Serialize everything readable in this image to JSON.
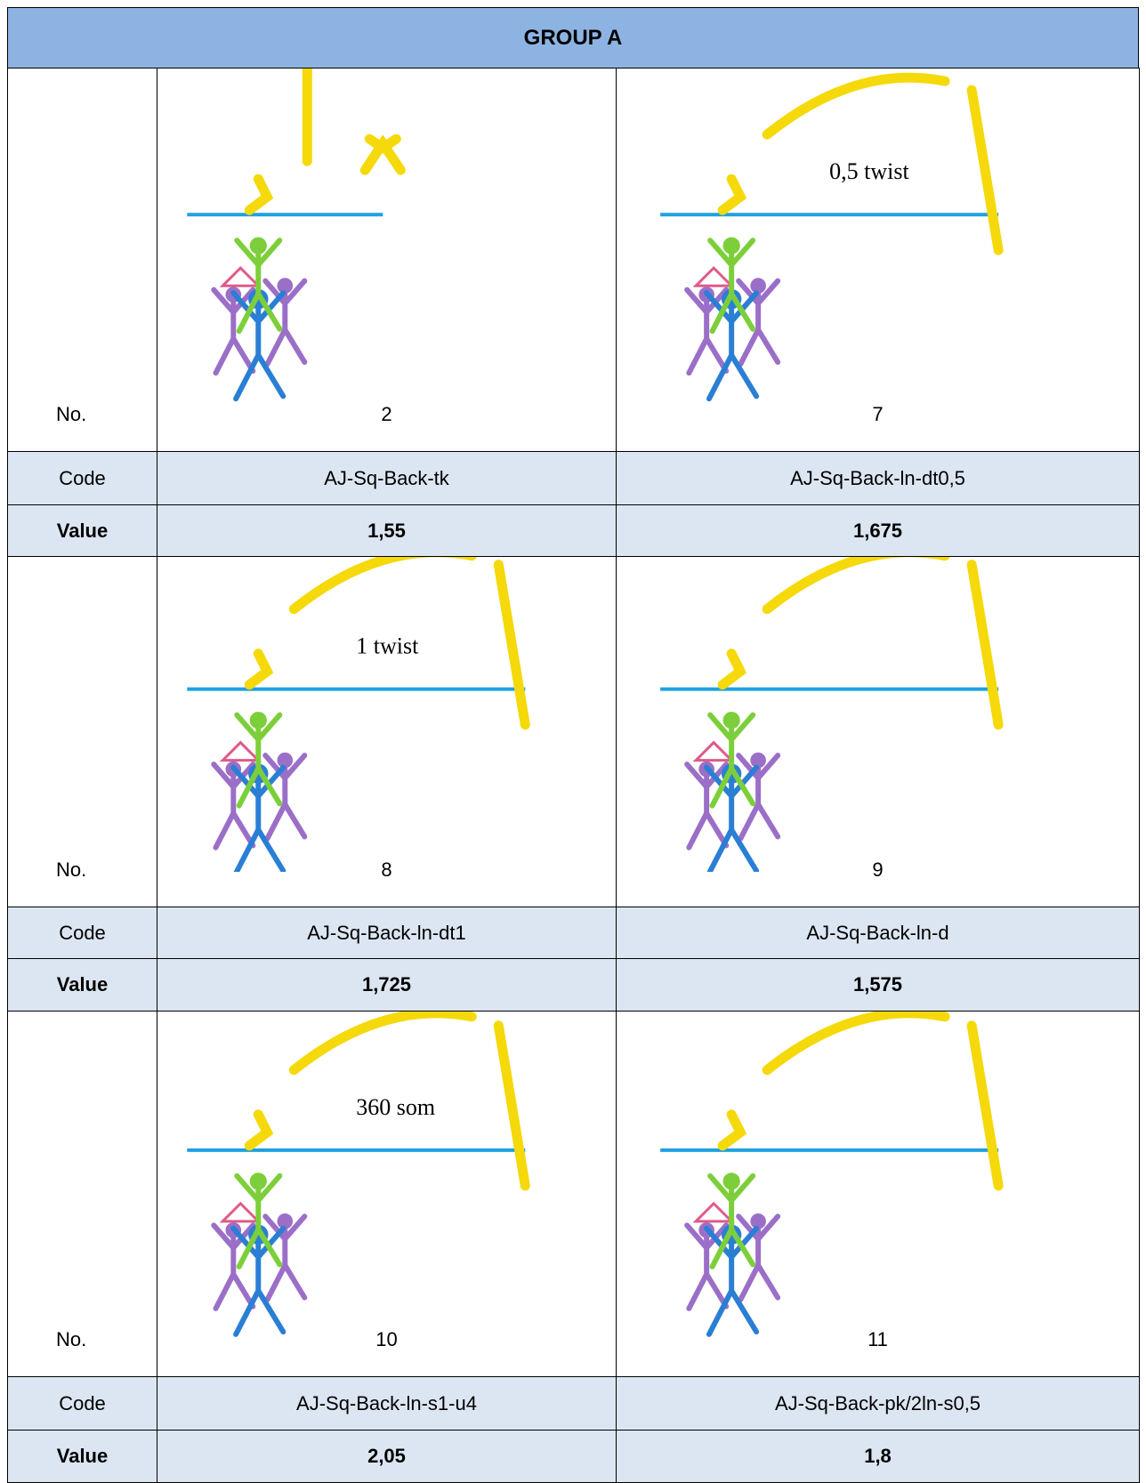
{
  "header": {
    "title": "GROUP A"
  },
  "table": {
    "blocks": [
      {
        "no_label": "No.",
        "code_label": "Code",
        "value_label": "Value",
        "items": [
          {
            "no": "2",
            "code": "AJ-Sq-Back-tk",
            "value": "1,55"
          },
          {
            "no": "7",
            "code": "AJ-Sq-Back-ln-dt0,5",
            "value": "1,675",
            "caption": "0,5 twist"
          }
        ]
      },
      {
        "no_label": "No.",
        "code_label": "Code",
        "value_label": "Value",
        "items": [
          {
            "no": "8",
            "code": "AJ-Sq-Back-ln-dt1",
            "value": "1,725",
            "caption": "1 twist"
          },
          {
            "no": "9",
            "code": "AJ-Sq-Back-ln-d",
            "value": "1,575"
          }
        ]
      },
      {
        "no_label": "No.",
        "code_label": "Code",
        "value_label": "Value",
        "items": [
          {
            "no": "10",
            "code": "AJ-Sq-Back-ln-s1-u4",
            "value": "2,05",
            "caption": "360 som"
          },
          {
            "no": "11",
            "code": "AJ-Sq-Back-pk/2ln-s0,5",
            "value": "1,8"
          }
        ]
      }
    ]
  }
}
